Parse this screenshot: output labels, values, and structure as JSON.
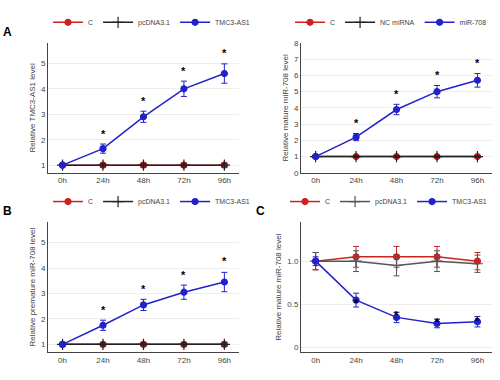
{
  "chart_data": [
    {
      "type": "line",
      "title": "A",
      "categories": [
        "0h",
        "24h",
        "48h",
        "72h",
        "96h"
      ],
      "ylabel": "Relative TMC3-AS1 level",
      "ylim": [
        0.7,
        5.8
      ],
      "yticks": [
        1,
        2,
        3,
        4,
        5
      ],
      "grid": true,
      "legend": "top",
      "series": [
        {
          "name": "C",
          "color": "#cc2222",
          "marker": "circle",
          "values": [
            1.0,
            1.0,
            1.0,
            1.0,
            1.0
          ],
          "errors": [
            0.05,
            0.07,
            0.07,
            0.07,
            0.08
          ]
        },
        {
          "name": "pcDNA3.1",
          "color": "#222222",
          "marker": "plus",
          "values": [
            1.0,
            1.0,
            1.0,
            1.0,
            1.0
          ],
          "errors": [
            0.05,
            0.07,
            0.07,
            0.07,
            0.07
          ]
        },
        {
          "name": "TMC3-AS1",
          "color": "#2222cc",
          "marker": "circle",
          "values": [
            1.0,
            1.65,
            2.9,
            4.0,
            4.6
          ],
          "errors": [
            0.05,
            0.18,
            0.22,
            0.3,
            0.38
          ]
        }
      ],
      "annotations": [
        {
          "x": "24h",
          "y": 1.9,
          "text": "*"
        },
        {
          "x": "48h",
          "y": 3.2,
          "text": "*"
        },
        {
          "x": "72h",
          "y": 4.4,
          "text": "*"
        },
        {
          "x": "96h",
          "y": 5.1,
          "text": "*"
        }
      ]
    },
    {
      "type": "line",
      "categories": [
        "0h",
        "24h",
        "48h",
        "72h",
        "96h"
      ],
      "ylabel": "Relative mature miR-708 level",
      "ylim": [
        0.0,
        8.0
      ],
      "yticks": [
        0,
        1,
        2,
        3,
        4,
        5,
        6,
        7,
        8
      ],
      "grid": true,
      "legend": "top",
      "series": [
        {
          "name": "C",
          "color": "#cc2222",
          "marker": "circle",
          "values": [
            1.0,
            1.0,
            1.0,
            1.0,
            1.0
          ],
          "errors": [
            0.05,
            0.06,
            0.06,
            0.06,
            0.06
          ]
        },
        {
          "name": "NC miRNA",
          "color": "#222222",
          "marker": "plus",
          "values": [
            1.0,
            1.0,
            1.0,
            1.0,
            1.0
          ],
          "errors": [
            0.05,
            0.06,
            0.06,
            0.06,
            0.06
          ]
        },
        {
          "name": "miR-708",
          "color": "#2222cc",
          "marker": "circle",
          "values": [
            1.0,
            2.2,
            3.9,
            5.0,
            5.7
          ],
          "errors": [
            0.08,
            0.22,
            0.32,
            0.38,
            0.42
          ]
        }
      ],
      "annotations": [
        {
          "x": "24h",
          "y": 2.55,
          "text": "*"
        },
        {
          "x": "48h",
          "y": 4.35,
          "text": "*"
        },
        {
          "x": "72h",
          "y": 5.55,
          "text": "*"
        },
        {
          "x": "96h",
          "y": 6.3,
          "text": "*"
        }
      ]
    },
    {
      "type": "line",
      "title": "B",
      "categories": [
        "0h",
        "24h",
        "48h",
        "72h",
        "96h"
      ],
      "ylabel": "Relative premature miR-708 level",
      "ylim": [
        0.7,
        5.8
      ],
      "yticks": [
        1,
        2,
        3,
        4,
        5
      ],
      "grid": true,
      "legend": "top",
      "series": [
        {
          "name": "C",
          "color": "#cc2222",
          "marker": "circle",
          "values": [
            1.0,
            1.0,
            1.0,
            1.0,
            1.0
          ],
          "errors": [
            0.07,
            0.07,
            0.07,
            0.07,
            0.09
          ]
        },
        {
          "name": "pcDNA3.1",
          "color": "#222222",
          "marker": "plus",
          "values": [
            1.0,
            1.0,
            1.0,
            1.0,
            1.0
          ],
          "errors": [
            0.05,
            0.06,
            0.06,
            0.06,
            0.06
          ]
        },
        {
          "name": "TMC3-AS1",
          "color": "#2222cc",
          "marker": "circle",
          "values": [
            1.0,
            1.75,
            2.55,
            3.05,
            3.45
          ],
          "errors": [
            0.05,
            0.2,
            0.22,
            0.28,
            0.38
          ]
        }
      ],
      "annotations": [
        {
          "x": "24h",
          "y": 2.05,
          "text": "*"
        },
        {
          "x": "48h",
          "y": 2.87,
          "text": "*"
        },
        {
          "x": "72h",
          "y": 3.42,
          "text": "*"
        },
        {
          "x": "96h",
          "y": 3.95,
          "text": "*"
        }
      ]
    },
    {
      "type": "line",
      "title": "C",
      "categories": [
        "0h",
        "24h",
        "48h",
        "72h",
        "96h"
      ],
      "ylabel": "Relative mature miR-708 level",
      "ylim": [
        -0.05,
        1.45
      ],
      "yticks": [
        0,
        0.5,
        {
          "value": 1.0,
          "label": "1.0"
        }
      ],
      "grid": true,
      "legend": "top",
      "series": [
        {
          "name": "C",
          "color": "#cc2222",
          "marker": "circle",
          "values": [
            1.0,
            1.05,
            1.05,
            1.05,
            1.0
          ],
          "errors": [
            0.1,
            0.12,
            0.12,
            0.12,
            0.1
          ]
        },
        {
          "name": "pcDNA3.1",
          "color": "#555555",
          "marker": "plus",
          "values": [
            1.0,
            1.0,
            0.95,
            1.0,
            0.97
          ],
          "errors": [
            0.1,
            0.12,
            0.12,
            0.12,
            0.1
          ]
        },
        {
          "name": "TMC3-AS1",
          "color": "#2222cc",
          "marker": "circle",
          "values": [
            1.0,
            0.55,
            0.35,
            0.28,
            0.3
          ],
          "errors": [
            0.05,
            0.08,
            0.06,
            0.05,
            0.06
          ]
        }
      ],
      "annotations": [
        {
          "x": "24h",
          "y": 0.42,
          "text": "*"
        },
        {
          "x": "48h",
          "y": 0.28,
          "text": "*"
        },
        {
          "x": "72h",
          "y": 0.21,
          "text": "*"
        },
        {
          "x": "96h",
          "y": 0.22,
          "text": "*"
        }
      ]
    }
  ]
}
